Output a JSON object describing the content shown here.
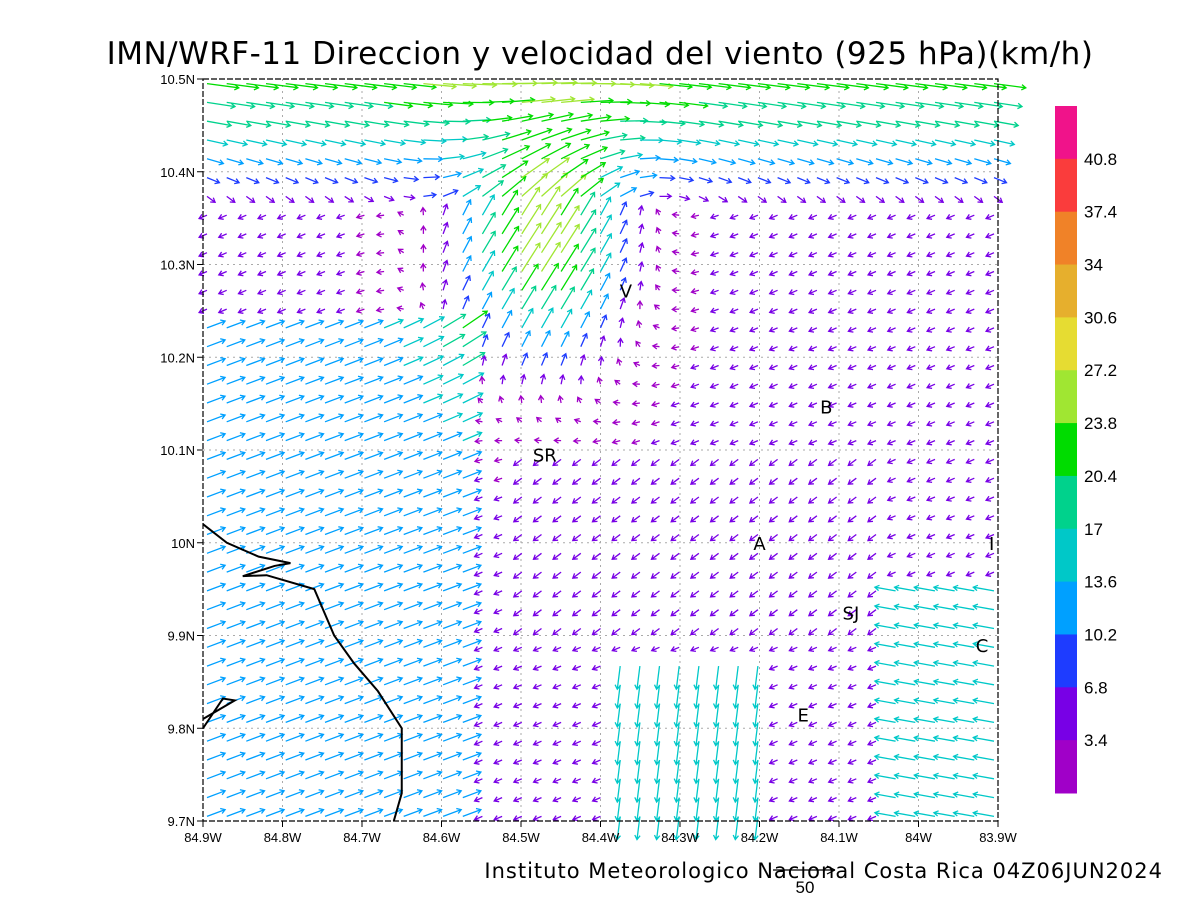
{
  "title": "IMN/WRF-11 Direccion y velocidad del viento (925 hPa)(km/h)",
  "footer": "Instituto Meteorologico Nacional Costa Rica 04Z06JUN2024",
  "reference_vector": {
    "label": "50",
    "speed": 50
  },
  "map": {
    "lon_range": [
      -84.9,
      -83.9
    ],
    "lat_range": [
      9.7,
      10.5
    ],
    "x_ticks": [
      {
        "value": -84.9,
        "label": "84.9W"
      },
      {
        "value": -84.8,
        "label": "84.8W"
      },
      {
        "value": -84.7,
        "label": "84.7W"
      },
      {
        "value": -84.6,
        "label": "84.6W"
      },
      {
        "value": -84.5,
        "label": "84.5W"
      },
      {
        "value": -84.4,
        "label": "84.4W"
      },
      {
        "value": -84.3,
        "label": "84.3W"
      },
      {
        "value": -84.2,
        "label": "84.2W"
      },
      {
        "value": -84.1,
        "label": "84.1W"
      },
      {
        "value": -84.0,
        "label": "84W"
      },
      {
        "value": -83.9,
        "label": "83.9W"
      }
    ],
    "y_ticks": [
      {
        "value": 9.7,
        "label": "9.7N"
      },
      {
        "value": 9.8,
        "label": "9.8N"
      },
      {
        "value": 9.9,
        "label": "9.9N"
      },
      {
        "value": 10.0,
        "label": "10N"
      },
      {
        "value": 10.1,
        "label": "10.1N"
      },
      {
        "value": 10.2,
        "label": "10.2N"
      },
      {
        "value": 10.3,
        "label": "10.3N"
      },
      {
        "value": 10.4,
        "label": "10.4N"
      },
      {
        "value": 10.5,
        "label": "10.5N"
      }
    ],
    "grid": true,
    "cities": [
      {
        "label": "V",
        "lon": -84.368,
        "lat": 10.272
      },
      {
        "label": "B",
        "lon": -84.116,
        "lat": 10.147
      },
      {
        "label": "SR",
        "lon": -84.47,
        "lat": 10.095
      },
      {
        "label": "A",
        "lon": -84.2,
        "lat": 10.0
      },
      {
        "label": "I",
        "lon": -83.908,
        "lat": 10.0
      },
      {
        "label": "SJ",
        "lon": -84.085,
        "lat": 9.925
      },
      {
        "label": "C",
        "lon": -83.92,
        "lat": 9.89
      },
      {
        "label": "E",
        "lon": -84.145,
        "lat": 9.815
      }
    ],
    "coastline": [
      [
        -84.9,
        10.02
      ],
      [
        -84.87,
        10.0
      ],
      [
        -84.83,
        9.985
      ],
      [
        -84.79,
        9.978
      ],
      [
        -84.81,
        9.975
      ],
      [
        -84.85,
        9.964
      ],
      [
        -84.82,
        9.965
      ],
      [
        -84.76,
        9.95
      ],
      [
        -84.735,
        9.9
      ],
      [
        -84.71,
        9.87
      ],
      [
        -84.68,
        9.84
      ],
      [
        -84.65,
        9.8
      ],
      [
        -84.65,
        9.758
      ],
      [
        -84.65,
        9.73
      ],
      [
        -84.66,
        9.7
      ]
    ],
    "coastline_west": [
      [
        -84.9,
        9.8
      ],
      [
        -84.875,
        9.832
      ],
      [
        -84.86,
        9.83
      ],
      [
        -84.9,
        9.81
      ]
    ]
  },
  "colorbar": {
    "levels": [
      "40.8",
      "37.4",
      "34",
      "30.6",
      "27.2",
      "23.8",
      "20.4",
      "17",
      "13.6",
      "10.2",
      "6.8",
      "3.4"
    ],
    "colors": [
      "#f0138a",
      "#fa3c3c",
      "#f08228",
      "#e6af2d",
      "#e6dc32",
      "#a0e632",
      "#00dc00",
      "#00d28c",
      "#00c8c8",
      "#00a0ff",
      "#1e3cff",
      "#7800e6",
      "#a000c8"
    ]
  }
}
